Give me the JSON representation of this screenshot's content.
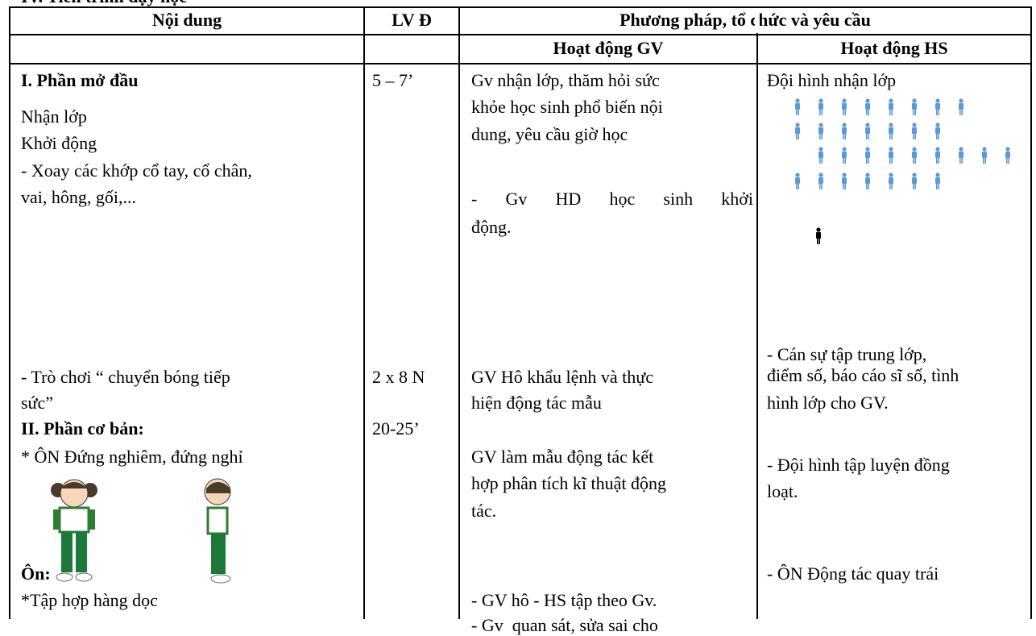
{
  "heading": "IV. Tiến trình dạy học",
  "table": {
    "header": [
      "Nội dung",
      "LV Đ",
      "Phương pháp, tổ chức và yêu cầu"
    ],
    "subheader": [
      "Hoạt động GV",
      "Hoạt động HS"
    ],
    "body": {
      "content": [
        "I. Phần mở đầu",
        "Nhận lớp",
        "Khởi động",
        "- Xoay các khớp cổ tay, cổ chân,",
        "vai, hông, gối,...",
        "- Trò chơi “ chuyển bóng tiếp",
        "sức”",
        "II. Phần cơ bản:",
        "* ÔN Đứng nghiêm, đứng nghỉ",
        "Ôn:",
        "*Tập hợp hàng dọc"
      ],
      "lvd": [
        "5 – 7’",
        "2 x 8 N",
        "20-25’"
      ],
      "gv": [
        "Gv nhận lớp, thăm hỏi sức",
        "khỏe học sinh phổ biến nội",
        "dung, yêu cầu giờ học",
        "- Gv HD học sinh khởi",
        "động.",
        "GV Hô khẩu lệnh và thực",
        "hiện động tác mẫu",
        "GV làm mẫu động tác kết",
        "hợp phân tích kĩ thuật động",
        "tác.",
        "- GV hô - HS tập theo Gv.",
        "- Gv  quan sát, sửa sai cho"
      ],
      "hs": [
        "Đội hình nhận lớp",
        "- Cán sự tập trung lớp,",
        "điểm số, báo cáo sĩ số, tình",
        "hình lớp cho GV.",
        "- Đội hình tập luyện đồng",
        "loạt.",
        "- ÔN Động tác quay trái"
      ]
    }
  }
}
